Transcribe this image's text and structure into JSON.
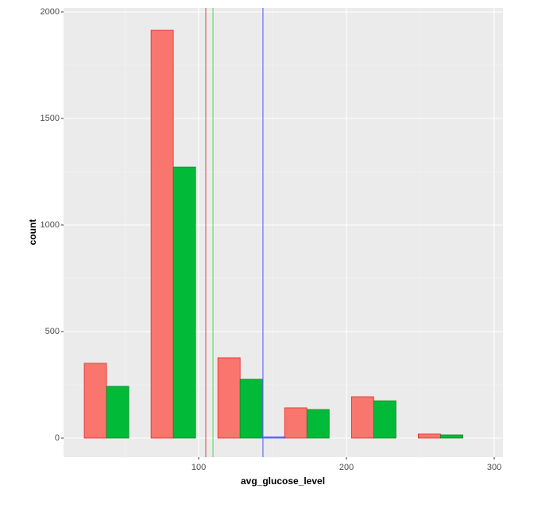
{
  "chart_data": {
    "type": "histogram",
    "x_label": "avg_glucose_level",
    "y_label": "count",
    "bins": [
      22.6,
      67.8,
      113.0,
      158.2,
      203.4,
      248.6,
      293.8
    ],
    "series": [
      {
        "color": "#F8766D",
        "edge": "#e8282a",
        "values": [
          351,
          1914,
          377,
          142,
          194,
          19
        ]
      },
      {
        "color": "#00BA38",
        "edge": "#0a8a2a",
        "values": [
          243,
          1272,
          276,
          134,
          175,
          15
        ]
      },
      {
        "color": "#619CFF",
        "edge": "#3a3aff",
        "values": [
          0,
          0,
          5,
          0,
          0,
          0
        ]
      }
    ],
    "vlines": [
      {
        "value": 104.8,
        "color": "#f06060"
      },
      {
        "value": 109.7,
        "color": "#66dd66"
      },
      {
        "value": 143.5,
        "color": "#6a6aff"
      }
    ],
    "xlim": [
      8.6,
      305.9
    ],
    "xticks": [
      100,
      200,
      300
    ],
    "ylim": [
      -89.6,
      2018.7
    ],
    "yticks": [
      0,
      500,
      1000,
      1500,
      2000
    ],
    "grid": true
  }
}
